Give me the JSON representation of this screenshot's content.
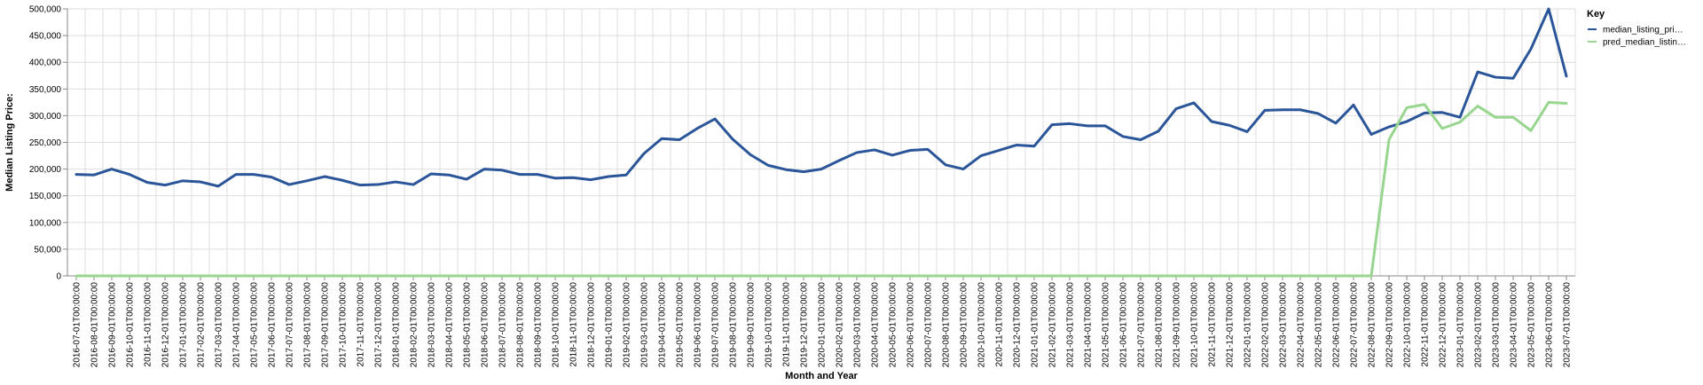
{
  "chart_data": {
    "type": "line",
    "xlabel": "Month and Year",
    "ylabel": "Median Listing Price:",
    "ylim": [
      0,
      500000
    ],
    "yticks": [
      "0",
      "50,000",
      "100,000",
      "150,000",
      "200,000",
      "250,000",
      "300,000",
      "350,000",
      "400,000",
      "450,000",
      "500,000"
    ],
    "ytick_values": [
      0,
      50000,
      100000,
      150000,
      200000,
      250000,
      300000,
      350000,
      400000,
      450000,
      500000
    ],
    "grid": true,
    "legend_title": "Key",
    "legend_position": "right",
    "x": [
      "2016-07-01T00:00:00",
      "2016-08-01T00:00:00",
      "2016-09-01T00:00:00",
      "2016-10-01T00:00:00",
      "2016-11-01T00:00:00",
      "2016-12-01T00:00:00",
      "2017-01-01T00:00:00",
      "2017-02-01T00:00:00",
      "2017-03-01T00:00:00",
      "2017-04-01T00:00:00",
      "2017-05-01T00:00:00",
      "2017-06-01T00:00:00",
      "2017-07-01T00:00:00",
      "2017-08-01T00:00:00",
      "2017-09-01T00:00:00",
      "2017-10-01T00:00:00",
      "2017-11-01T00:00:00",
      "2017-12-01T00:00:00",
      "2018-01-01T00:00:00",
      "2018-02-01T00:00:00",
      "2018-03-01T00:00:00",
      "2018-04-01T00:00:00",
      "2018-05-01T00:00:00",
      "2018-06-01T00:00:00",
      "2018-07-01T00:00:00",
      "2018-08-01T00:00:00",
      "2018-09-01T00:00:00",
      "2018-10-01T00:00:00",
      "2018-11-01T00:00:00",
      "2018-12-01T00:00:00",
      "2019-01-01T00:00:00",
      "2019-02-01T00:00:00",
      "2019-03-01T00:00:00",
      "2019-04-01T00:00:00",
      "2019-05-01T00:00:00",
      "2019-06-01T00:00:00",
      "2019-07-01T00:00:00",
      "2019-08-01T00:00:00",
      "2019-09-01T00:00:00",
      "2019-10-01T00:00:00",
      "2019-11-01T00:00:00",
      "2019-12-01T00:00:00",
      "2020-01-01T00:00:00",
      "2020-02-01T00:00:00",
      "2020-03-01T00:00:00",
      "2020-04-01T00:00:00",
      "2020-05-01T00:00:00",
      "2020-06-01T00:00:00",
      "2020-07-01T00:00:00",
      "2020-08-01T00:00:00",
      "2020-09-01T00:00:00",
      "2020-10-01T00:00:00",
      "2020-11-01T00:00:00",
      "2020-12-01T00:00:00",
      "2021-01-01T00:00:00",
      "2021-02-01T00:00:00",
      "2021-03-01T00:00:00",
      "2021-04-01T00:00:00",
      "2021-05-01T00:00:00",
      "2021-06-01T00:00:00",
      "2021-07-01T00:00:00",
      "2021-08-01T00:00:00",
      "2021-09-01T00:00:00",
      "2021-10-01T00:00:00",
      "2021-11-01T00:00:00",
      "2021-12-01T00:00:00",
      "2022-01-01T00:00:00",
      "2022-02-01T00:00:00",
      "2022-03-01T00:00:00",
      "2022-04-01T00:00:00",
      "2022-05-01T00:00:00",
      "2022-06-01T00:00:00",
      "2022-07-01T00:00:00",
      "2022-08-01T00:00:00",
      "2022-09-01T00:00:00",
      "2022-10-01T00:00:00",
      "2022-11-01T00:00:00",
      "2022-12-01T00:00:00",
      "2023-01-01T00:00:00",
      "2023-02-01T00:00:00",
      "2023-03-01T00:00:00",
      "2023-04-01T00:00:00",
      "2023-05-01T00:00:00",
      "2023-06-01T00:00:00",
      "2023-07-01T00:00:00"
    ],
    "series": [
      {
        "name": "median_listing_pri…",
        "color": "#2a5599",
        "values": [
          190000,
          189000,
          200000,
          190000,
          175000,
          170000,
          178000,
          176000,
          168000,
          190000,
          190000,
          185000,
          171000,
          178000,
          186000,
          179000,
          170000,
          171000,
          176000,
          171000,
          191000,
          189000,
          181000,
          200000,
          198000,
          190000,
          190000,
          183000,
          184000,
          180000,
          186000,
          189000,
          229000,
          257000,
          255000,
          276000,
          294000,
          256000,
          227000,
          207000,
          199000,
          195000,
          200000,
          216000,
          231000,
          236000,
          226000,
          235000,
          237000,
          208000,
          200000,
          225000,
          235000,
          245000,
          243000,
          283000,
          285000,
          281000,
          281000,
          261000,
          255000,
          271000,
          313000,
          324000,
          289000,
          282000,
          270000,
          310000,
          311000,
          311000,
          304000,
          286000,
          320000,
          265000,
          279000,
          289000,
          305000,
          306000,
          297000,
          382000,
          372000,
          370000,
          425000,
          500000,
          374000
        ]
      },
      {
        "name": "pred_median_listin…",
        "color": "#98d690",
        "values": [
          0,
          0,
          0,
          0,
          0,
          0,
          0,
          0,
          0,
          0,
          0,
          0,
          0,
          0,
          0,
          0,
          0,
          0,
          0,
          0,
          0,
          0,
          0,
          0,
          0,
          0,
          0,
          0,
          0,
          0,
          0,
          0,
          0,
          0,
          0,
          0,
          0,
          0,
          0,
          0,
          0,
          0,
          0,
          0,
          0,
          0,
          0,
          0,
          0,
          0,
          0,
          0,
          0,
          0,
          0,
          0,
          0,
          0,
          0,
          0,
          0,
          0,
          0,
          0,
          0,
          0,
          0,
          0,
          0,
          0,
          0,
          0,
          0,
          0,
          255000,
          315000,
          321000,
          276000,
          288000,
          318000,
          297000,
          297000,
          272000,
          325000,
          323000
        ]
      }
    ]
  }
}
